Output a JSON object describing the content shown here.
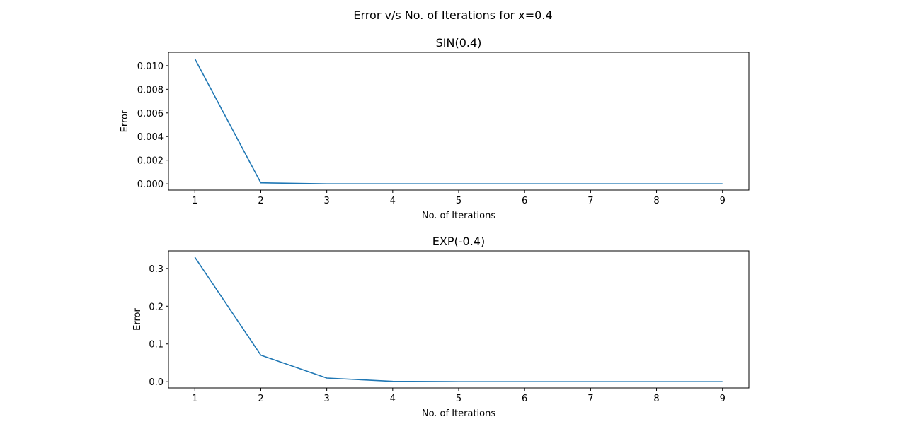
{
  "figure": {
    "suptitle": "Error v/s No. of Iterations for x=0.4"
  },
  "colors": {
    "line": "#1f77b4",
    "axes": "#000000",
    "background": "#ffffff"
  },
  "chart_data": [
    {
      "type": "line",
      "title": "SIN(0.4)",
      "xlabel": "No. of Iterations",
      "ylabel": "Error",
      "xlim": [
        0.6,
        9.4
      ],
      "ylim": [
        -0.00053,
        0.01113
      ],
      "xticks": [
        1,
        2,
        3,
        4,
        5,
        6,
        7,
        8,
        9
      ],
      "yticks": [
        0.0,
        0.002,
        0.004,
        0.006,
        0.008,
        0.01
      ],
      "ytick_labels": [
        "0.000",
        "0.002",
        "0.004",
        "0.006",
        "0.008",
        "0.010"
      ],
      "grid": false,
      "series": [
        {
          "x": [
            1,
            2,
            3,
            4,
            5,
            6,
            7,
            8,
            9
          ],
          "y": [
            0.010582,
            8.54e-05,
            3e-07,
            0.0,
            0.0,
            0.0,
            0.0,
            0.0,
            0.0
          ]
        }
      ]
    },
    {
      "type": "line",
      "title": "EXP(-0.4)",
      "xlabel": "No. of Iterations",
      "ylabel": "Error",
      "xlim": [
        0.6,
        9.4
      ],
      "ylim": [
        -0.0165,
        0.3465
      ],
      "xticks": [
        1,
        2,
        3,
        4,
        5,
        6,
        7,
        8,
        9
      ],
      "yticks": [
        0.0,
        0.1,
        0.2,
        0.3
      ],
      "ytick_labels": [
        "0.0",
        "0.1",
        "0.2",
        "0.3"
      ],
      "grid": false,
      "series": [
        {
          "x": [
            1,
            2,
            3,
            4,
            5,
            6,
            7,
            8,
            9
          ],
          "y": [
            0.32968,
            0.07032,
            0.00968,
            0.00099,
            8e-05,
            6e-06,
            0.0,
            0.0,
            0.0
          ]
        }
      ]
    }
  ]
}
